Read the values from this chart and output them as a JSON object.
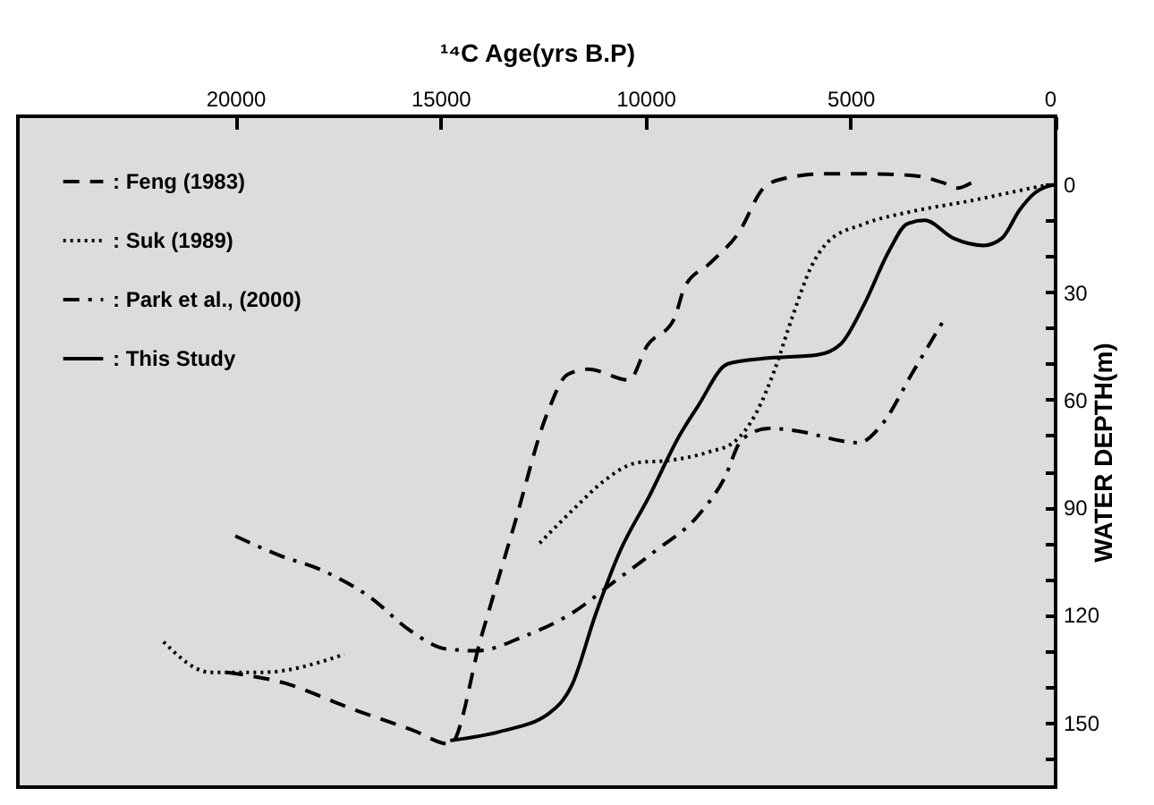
{
  "chart_data": {
    "type": "line",
    "xlabel": "¹⁴C Age(yrs B.P)",
    "ylabel": "WATER DEPTH(m)",
    "xlim": [
      25300,
      0
    ],
    "ylim": [
      168,
      -19
    ],
    "xticks": [
      20000,
      15000,
      10000,
      5000,
      0
    ],
    "yticks": [
      0,
      {
        "value": 10,
        "label": null
      },
      {
        "value": 20,
        "label": null
      },
      30,
      {
        "value": 40,
        "label": null
      },
      {
        "value": 50,
        "label": null
      },
      60,
      {
        "value": 70,
        "label": null
      },
      {
        "value": 80,
        "label": null
      },
      90,
      {
        "value": 100,
        "label": null
      },
      {
        "value": 110,
        "label": null
      },
      120,
      {
        "value": 130,
        "label": null
      },
      {
        "value": 140,
        "label": null
      },
      150,
      {
        "value": 160,
        "label": null
      }
    ],
    "grid": false,
    "legend": "top left",
    "series": [
      {
        "name": ": Feng (1983)",
        "color": "#000000",
        "line_style": "dashed",
        "x": [
          20200,
          18800,
          17200,
          15700,
          14760,
          14000,
          13200,
          12400,
          11900,
          11400,
          10400,
          9960,
          9300,
          9040,
          8430,
          7730,
          7120,
          6680,
          5550,
          4800,
          3490,
          2750,
          2400,
          2050
        ],
        "values": [
          136,
          139,
          146,
          152,
          156,
          126,
          95,
          64,
          53,
          51.5,
          54.5,
          45,
          37.5,
          28.5,
          22,
          13.5,
          1,
          -1.5,
          -3,
          -3,
          -2.5,
          -0.5,
          1,
          -0.5
        ]
      },
      {
        "name": ": Suk (1989)",
        "color": "#000000",
        "line_style": "dotted",
        "x": [
          21750,
          20600,
          19350,
          17340,
          15000,
          12580,
          11660,
          11050,
          10170,
          9480,
          8430,
          7860,
          7290,
          6860,
          6420,
          5980,
          5550,
          4670,
          3490,
          2050,
          1000,
          350,
          0
        ],
        "values": [
          127.5,
          136,
          136,
          131,
          null,
          100,
          89.5,
          83,
          77.5,
          77,
          74.5,
          72,
          63.5,
          52,
          37,
          23.5,
          16,
          11,
          7.5,
          4.5,
          2,
          0.5,
          0
        ]
      },
      {
        "name": ": Park et al., (2000)",
        "color": "#000000",
        "line_style": "dashdot",
        "x": [
          20000,
          18900,
          17900,
          16720,
          15720,
          14850,
          14100,
          12970,
          11790,
          10790,
          9740,
          8730,
          8080,
          7640,
          6990,
          6420,
          4800,
          4240,
          3490,
          2710
        ],
        "values": [
          98,
          103.5,
          107.5,
          115,
          124.5,
          129.5,
          130,
          126,
          119.5,
          111,
          102,
          92.5,
          82,
          71,
          68,
          68.5,
          72,
          67,
          52.5,
          37.5
        ]
      },
      {
        "name": ": This Study",
        "color": "#000000",
        "line_style": "solid",
        "x": [
          14760,
          13540,
          12360,
          11790,
          11220,
          10610,
          9910,
          9170,
          8730,
          7990,
          7120,
          5810,
          5240,
          4670,
          4060,
          3620,
          3190,
          2490,
          1750,
          1310,
          870,
          520,
          0
        ],
        "values": [
          155,
          152.5,
          147.5,
          139.5,
          120,
          102,
          87,
          70,
          62,
          50,
          48.5,
          47.5,
          44.5,
          33.5,
          18.5,
          11,
          10,
          15,
          17,
          15,
          7,
          2.5,
          0
        ]
      }
    ]
  }
}
